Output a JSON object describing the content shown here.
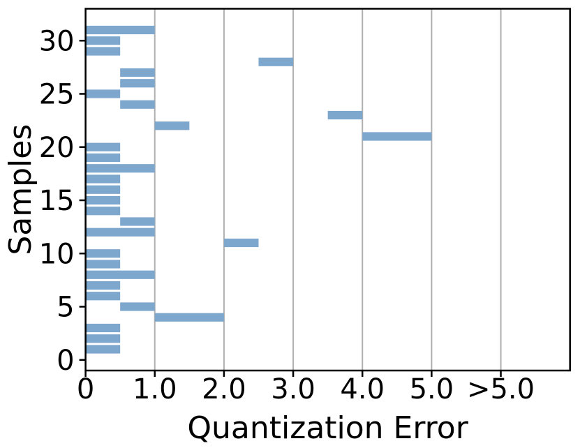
{
  "figure": {
    "xlabel": "Quantization Error",
    "ylabel": "Samples"
  },
  "chart_data": {
    "type": "bar",
    "orientation": "horizontal",
    "title": "",
    "xlabel": "Quantization Error",
    "ylabel": "Samples",
    "xlim": [
      0,
      7
    ],
    "ylim": [
      -1,
      33
    ],
    "x_ticks": {
      "values": [
        0,
        1,
        2,
        3,
        4,
        5,
        6
      ],
      "labels": [
        "0",
        "1.0",
        "2.0",
        "3.0",
        "4.0",
        "5.0",
        ">5.0"
      ]
    },
    "y_ticks": {
      "values": [
        0,
        5,
        10,
        15,
        20,
        25,
        30
      ],
      "labels": [
        "0",
        "5",
        "10",
        "15",
        "20",
        "25",
        "30"
      ]
    },
    "grid": {
      "axis": "x",
      "on": true,
      "color": "#b0b0b0"
    },
    "legend": {
      "on": false
    },
    "bar_color": "#7ea7cd",
    "bar_height": 0.8,
    "bars": [
      {
        "sample": 1,
        "xmin": 0.0,
        "xmax": 0.5
      },
      {
        "sample": 2,
        "xmin": 0.0,
        "xmax": 0.5
      },
      {
        "sample": 3,
        "xmin": 0.0,
        "xmax": 0.5
      },
      {
        "sample": 4,
        "xmin": 1.0,
        "xmax": 2.0
      },
      {
        "sample": 5,
        "xmin": 0.5,
        "xmax": 1.0
      },
      {
        "sample": 6,
        "xmin": 0.0,
        "xmax": 0.5
      },
      {
        "sample": 7,
        "xmin": 0.0,
        "xmax": 0.5
      },
      {
        "sample": 8,
        "xmin": 0.0,
        "xmax": 1.0
      },
      {
        "sample": 9,
        "xmin": 0.0,
        "xmax": 0.5
      },
      {
        "sample": 10,
        "xmin": 0.0,
        "xmax": 0.5
      },
      {
        "sample": 11,
        "xmin": 2.0,
        "xmax": 2.5
      },
      {
        "sample": 12,
        "xmin": 0.0,
        "xmax": 1.0
      },
      {
        "sample": 13,
        "xmin": 0.5,
        "xmax": 1.0
      },
      {
        "sample": 14,
        "xmin": 0.0,
        "xmax": 0.5
      },
      {
        "sample": 15,
        "xmin": 0.0,
        "xmax": 0.5
      },
      {
        "sample": 16,
        "xmin": 0.0,
        "xmax": 0.5
      },
      {
        "sample": 17,
        "xmin": 0.0,
        "xmax": 0.5
      },
      {
        "sample": 18,
        "xmin": 0.0,
        "xmax": 1.0
      },
      {
        "sample": 19,
        "xmin": 0.0,
        "xmax": 0.5
      },
      {
        "sample": 20,
        "xmin": 0.0,
        "xmax": 0.5
      },
      {
        "sample": 21,
        "xmin": 4.0,
        "xmax": 5.0
      },
      {
        "sample": 22,
        "xmin": 1.0,
        "xmax": 1.5
      },
      {
        "sample": 23,
        "xmin": 3.5,
        "xmax": 4.0
      },
      {
        "sample": 24,
        "xmin": 0.5,
        "xmax": 1.0
      },
      {
        "sample": 25,
        "xmin": 0.0,
        "xmax": 0.5
      },
      {
        "sample": 26,
        "xmin": 0.5,
        "xmax": 1.0
      },
      {
        "sample": 27,
        "xmin": 0.5,
        "xmax": 1.0
      },
      {
        "sample": 28,
        "xmin": 2.5,
        "xmax": 3.0
      },
      {
        "sample": 29,
        "xmin": 0.0,
        "xmax": 0.5
      },
      {
        "sample": 30,
        "xmin": 0.0,
        "xmax": 0.5
      },
      {
        "sample": 31,
        "xmin": 0.0,
        "xmax": 1.0
      }
    ],
    "colors": {
      "bar": "#7ea7cd",
      "grid": "#b0b0b0",
      "spine": "#000000",
      "background": "#ffffff"
    }
  }
}
